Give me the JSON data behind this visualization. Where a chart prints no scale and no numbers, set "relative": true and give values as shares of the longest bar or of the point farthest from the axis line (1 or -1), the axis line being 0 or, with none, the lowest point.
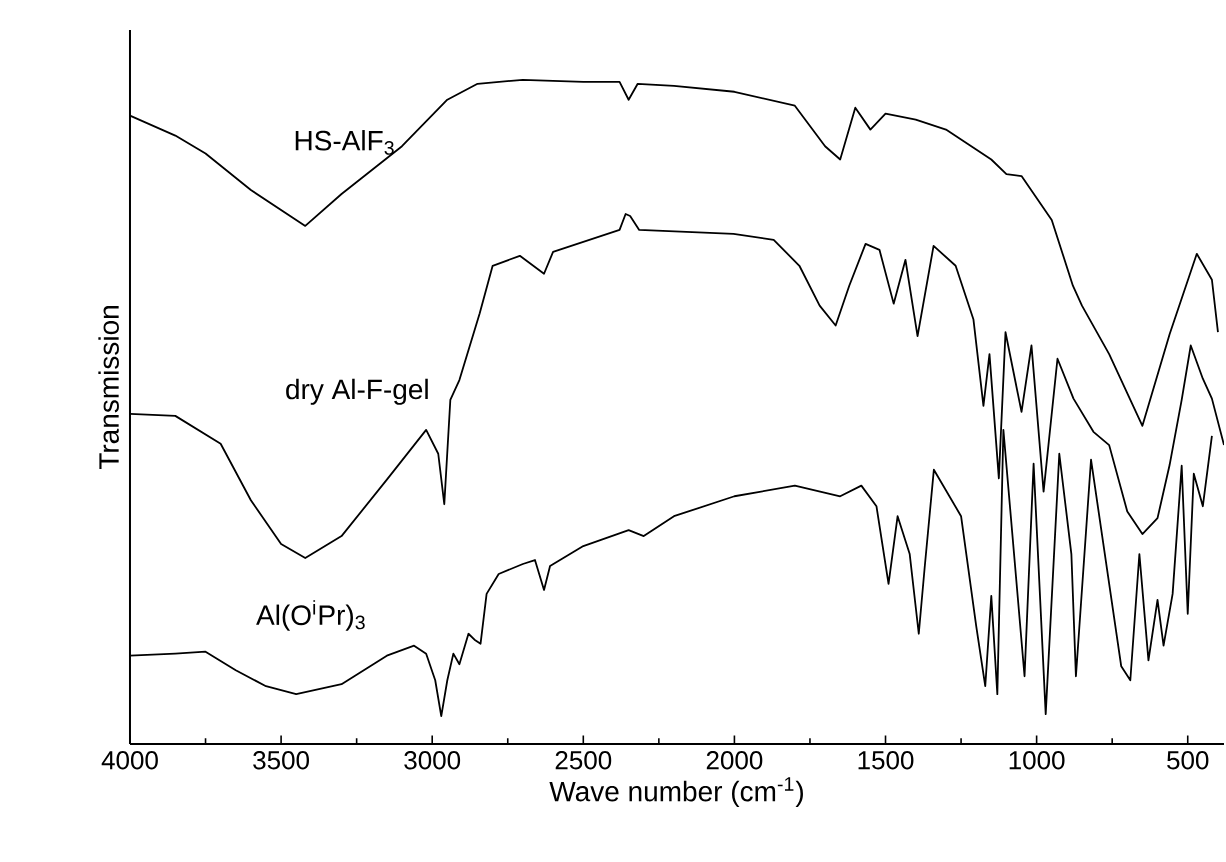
{
  "chart_data": {
    "type": "line",
    "xlabel": "Wave number (cm$^{-1}$)",
    "ylabel": "Transmission",
    "relative": true,
    "xlim": [
      4000,
      380
    ],
    "xticks": [
      4000,
      3500,
      3000,
      2500,
      2000,
      1500,
      1000,
      500
    ],
    "series": [
      {
        "name": "HS-AlF$_{3}$",
        "color": "#000000",
        "x": [
          4000,
          3850,
          3750,
          3600,
          3420,
          3300,
          3100,
          2950,
          2850,
          2700,
          2500,
          2380,
          2350,
          2320,
          2200,
          2000,
          1800,
          1700,
          1650,
          1600,
          1550,
          1500,
          1400,
          1300,
          1150,
          1100,
          1050,
          950,
          880,
          850,
          760,
          650,
          560,
          470,
          420,
          400
        ],
        "values": [
          0.946,
          0.916,
          0.889,
          0.834,
          0.78,
          0.828,
          0.9,
          0.97,
          0.994,
          1.0,
          0.997,
          0.997,
          0.97,
          0.994,
          0.991,
          0.982,
          0.961,
          0.9,
          0.88,
          0.958,
          0.925,
          0.949,
          0.94,
          0.925,
          0.88,
          0.858,
          0.855,
          0.789,
          0.69,
          0.66,
          0.587,
          0.479,
          0.617,
          0.738,
          0.699,
          0.62
        ]
      },
      {
        "name": "dry Al-F-gel",
        "color": "#000000",
        "x": [
          4000,
          3850,
          3700,
          3600,
          3500,
          3420,
          3300,
          3150,
          3020,
          2980,
          2960,
          2940,
          2910,
          2843,
          2800,
          2710,
          2630,
          2600,
          2380,
          2360,
          2345,
          2315,
          2003,
          1870,
          1785,
          1718,
          1665,
          1620,
          1566,
          1520,
          1473,
          1434,
          1394,
          1341,
          1268,
          1209,
          1176,
          1156,
          1125,
          1103,
          1050,
          1017,
          977,
          931,
          878,
          812,
          760,
          700,
          650,
          600,
          560,
          520,
          490,
          450,
          420,
          380
        ],
        "values": [
          0.497,
          0.494,
          0.452,
          0.367,
          0.301,
          0.28,
          0.313,
          0.398,
          0.473,
          0.437,
          0.361,
          0.518,
          0.548,
          0.648,
          0.72,
          0.735,
          0.708,
          0.741,
          0.774,
          0.798,
          0.795,
          0.774,
          0.768,
          0.759,
          0.72,
          0.66,
          0.63,
          0.69,
          0.753,
          0.744,
          0.663,
          0.729,
          0.614,
          0.75,
          0.72,
          0.639,
          0.509,
          0.587,
          0.4,
          0.62,
          0.5,
          0.6,
          0.38,
          0.58,
          0.52,
          0.47,
          0.45,
          0.35,
          0.316,
          0.34,
          0.42,
          0.518,
          0.6,
          0.55,
          0.52,
          0.45
        ]
      },
      {
        "name": "Al(O$^{i}$Pr)$_{3}$",
        "color": "#000000",
        "x": [
          4000,
          3850,
          3750,
          3650,
          3550,
          3450,
          3300,
          3150,
          3060,
          3020,
          2990,
          2970,
          2950,
          2930,
          2910,
          2880,
          2860,
          2840,
          2820,
          2780,
          2700,
          2660,
          2630,
          2610,
          2500,
          2350,
          2300,
          2200,
          2000,
          1800,
          1650,
          1580,
          1530,
          1490,
          1460,
          1420,
          1390,
          1370,
          1340,
          1250,
          1200,
          1170,
          1150,
          1130,
          1110,
          1040,
          1010,
          970,
          925,
          885,
          870,
          820,
          720,
          690,
          660,
          630,
          600,
          580,
          550,
          520,
          500,
          480,
          450,
          420
        ],
        "values": [
          0.133,
          0.136,
          0.139,
          0.111,
          0.087,
          0.075,
          0.09,
          0.133,
          0.148,
          0.136,
          0.096,
          0.042,
          0.096,
          0.136,
          0.12,
          0.166,
          0.157,
          0.151,
          0.226,
          0.256,
          0.271,
          0.277,
          0.232,
          0.268,
          0.298,
          0.322,
          0.313,
          0.343,
          0.373,
          0.389,
          0.373,
          0.389,
          0.358,
          0.241,
          0.343,
          0.286,
          0.166,
          0.268,
          0.413,
          0.343,
          0.178,
          0.087,
          0.223,
          0.075,
          0.473,
          0.102,
          0.422,
          0.045,
          0.437,
          0.286,
          0.102,
          0.428,
          0.117,
          0.096,
          0.286,
          0.126,
          0.217,
          0.148,
          0.226,
          0.419,
          0.196,
          0.407,
          0.358,
          0.464
        ]
      }
    ]
  }
}
